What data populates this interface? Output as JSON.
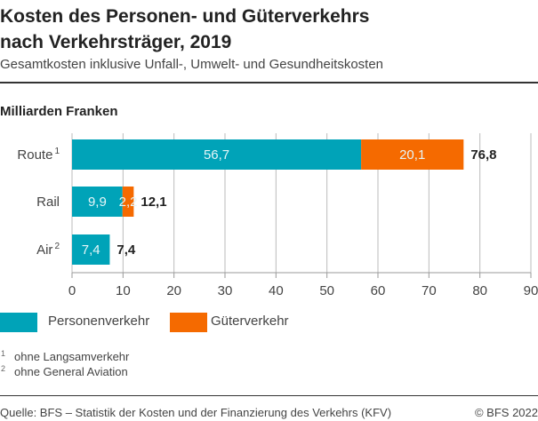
{
  "title_line1": "Kosten des Personen- und Güterverkehrs",
  "title_line2": "nach Verkehrsträger, 2019",
  "subtitle": "Gesamtkosten inklusive Unfall-, Umwelt- und Gesundheitskosten",
  "colors": {
    "personen": "#00a3b8",
    "gueter": "#f56a00"
  },
  "chart_data": {
    "type": "bar",
    "orientation": "horizontal",
    "stacked": true,
    "unit_label": "Milliarden Franken",
    "categories": [
      "Route",
      "Rail",
      "Air"
    ],
    "category_footnotes": [
      "1",
      "",
      "2"
    ],
    "series": [
      {
        "name": "Personenverkehr",
        "values": [
          56.7,
          9.9,
          7.4
        ],
        "labels": [
          "56,7",
          "9,9",
          "7,4"
        ]
      },
      {
        "name": "Güterverkehr",
        "values": [
          20.1,
          2.2,
          0
        ],
        "labels": [
          "20,1",
          "2,2",
          ""
        ]
      }
    ],
    "totals": [
      76.8,
      12.1,
      7.4
    ],
    "total_labels": [
      "76,8",
      "12,1",
      "7,4"
    ],
    "xlim": [
      0,
      90
    ],
    "xticks": [
      0,
      10,
      20,
      30,
      40,
      50,
      60,
      70,
      80,
      90
    ],
    "grid": true,
    "legend": "bottom-left"
  },
  "footnotes": [
    {
      "mark": "1",
      "text": "ohne Langsamverkehr"
    },
    {
      "mark": "2",
      "text": "ohne General Aviation"
    }
  ],
  "source": "Quelle: BFS –  Statistik der Kosten und der Finanzierung des Verkehrs (KFV)",
  "copyright": "© BFS 2022"
}
